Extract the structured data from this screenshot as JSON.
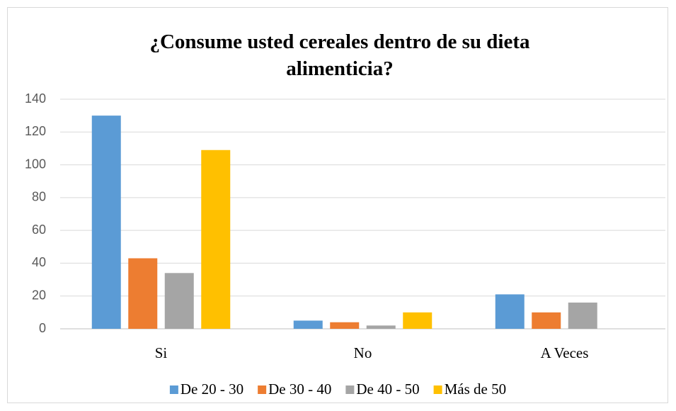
{
  "chart_data": {
    "type": "bar",
    "title": "¿Consume usted cereales dentro de su dieta alimenticia?",
    "categories": [
      "Si",
      "No",
      "A Veces"
    ],
    "series": [
      {
        "name": "De 20 - 30",
        "color": "#5b9bd5",
        "values": [
          130,
          5,
          21
        ]
      },
      {
        "name": "De 30 - 40",
        "color": "#ed7d31",
        "values": [
          43,
          4,
          10
        ]
      },
      {
        "name": "De 40 - 50",
        "color": "#a5a5a5",
        "values": [
          34,
          2,
          16
        ]
      },
      {
        "name": "Más de 50",
        "color": "#ffc000",
        "values": [
          109,
          10,
          0
        ]
      }
    ],
    "ylim": [
      0,
      140
    ],
    "yticks": [
      0,
      20,
      40,
      60,
      80,
      100,
      120,
      140
    ],
    "grid": true,
    "legend": "bottom"
  }
}
